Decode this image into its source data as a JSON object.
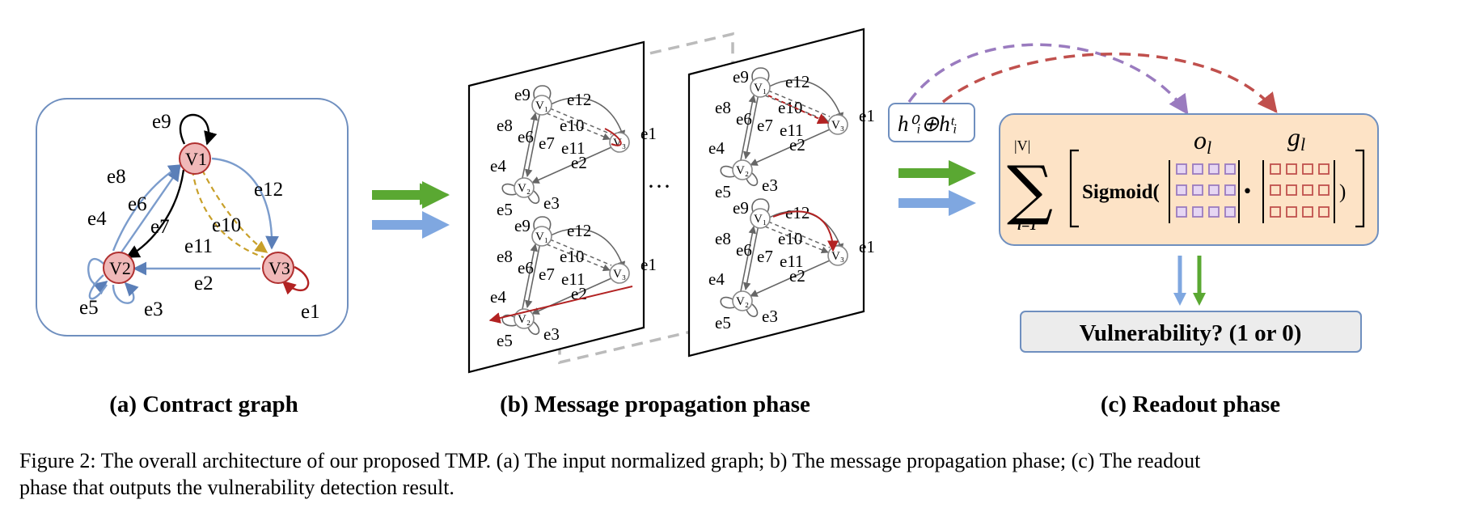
{
  "panel_a": {
    "label": "(a) Contract graph",
    "nodes": {
      "v1": "V1",
      "v2": "V2",
      "v3": "V3"
    },
    "edges": [
      "e1",
      "e2",
      "e3",
      "e4",
      "e5",
      "e6",
      "e7",
      "e8",
      "e9",
      "e10",
      "e11",
      "e12"
    ]
  },
  "panel_b": {
    "label": "(b) Message propagation phase",
    "ellipsis": "···"
  },
  "panel_c": {
    "label": "(c) Readout phase",
    "concat": "h⁰ᵢ⊕hᵗᵢ",
    "sum_upper": "|V|",
    "sum_lower": "i=1",
    "sum_symbol": "∑",
    "sigmoid": "Sigmoid(",
    "close_paren": ")",
    "dot": "•",
    "o_label": "o",
    "o_sub": "l",
    "g_label": "g",
    "g_sub": "l",
    "result": "Vulnerability? (1 or 0)"
  },
  "caption": {
    "line1": "Figure 2: The overall architecture of our proposed TMP. (a) The input normalized graph; b) The message propagation phase; (c) The readout",
    "line2": "phase that outputs the vulnerability detection result."
  },
  "colors": {
    "blue_edge": "#7b9ccc",
    "red_edge": "#b22222",
    "gold_edge": "#c8a02a",
    "node_fill": "#f0b8b8",
    "node_stroke": "#b03030",
    "green_arrow": "#5aa832",
    "blue_arrow": "#7fa7e0",
    "readout_fill": "#fde3c6",
    "purple_dash": "#9a7bbf",
    "red_dash": "#c0504d"
  }
}
